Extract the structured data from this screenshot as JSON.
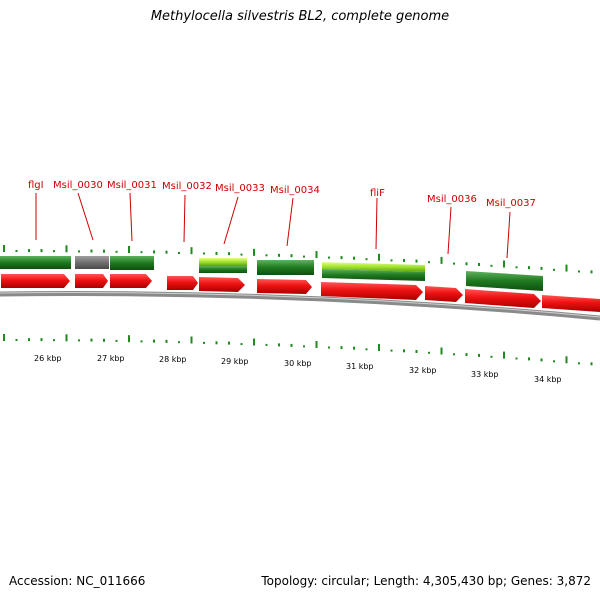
{
  "title": "Methylocella silvestris BL2, complete genome",
  "footer": {
    "accession": "Accession: NC_011666",
    "summary": "Topology: circular; Length: 4,305,430 bp; Genes: 3,872"
  },
  "colors": {
    "forward_gene": "#ee1111",
    "gene_dark_green": "#1f7a1f",
    "gene_light_green": "#9ee22d",
    "gene_gray": "#6f6f6f",
    "backbone": "#8a8a8a",
    "tick_green": "#1f8a1f",
    "label_red": "#cc0000"
  },
  "kbp_labels": [
    "26 kbp",
    "27 kbp",
    "28 kbp",
    "29 kbp",
    "30 kbp",
    "31 kbp",
    "32 kbp",
    "33 kbp",
    "34 kbp"
  ],
  "gene_labels": [
    "flgI",
    "Msil_0030",
    "Msil_0031",
    "Msil_0032",
    "Msil_0033",
    "Msil_0034",
    "fliF",
    "Msil_0036",
    "Msil_0037"
  ]
}
